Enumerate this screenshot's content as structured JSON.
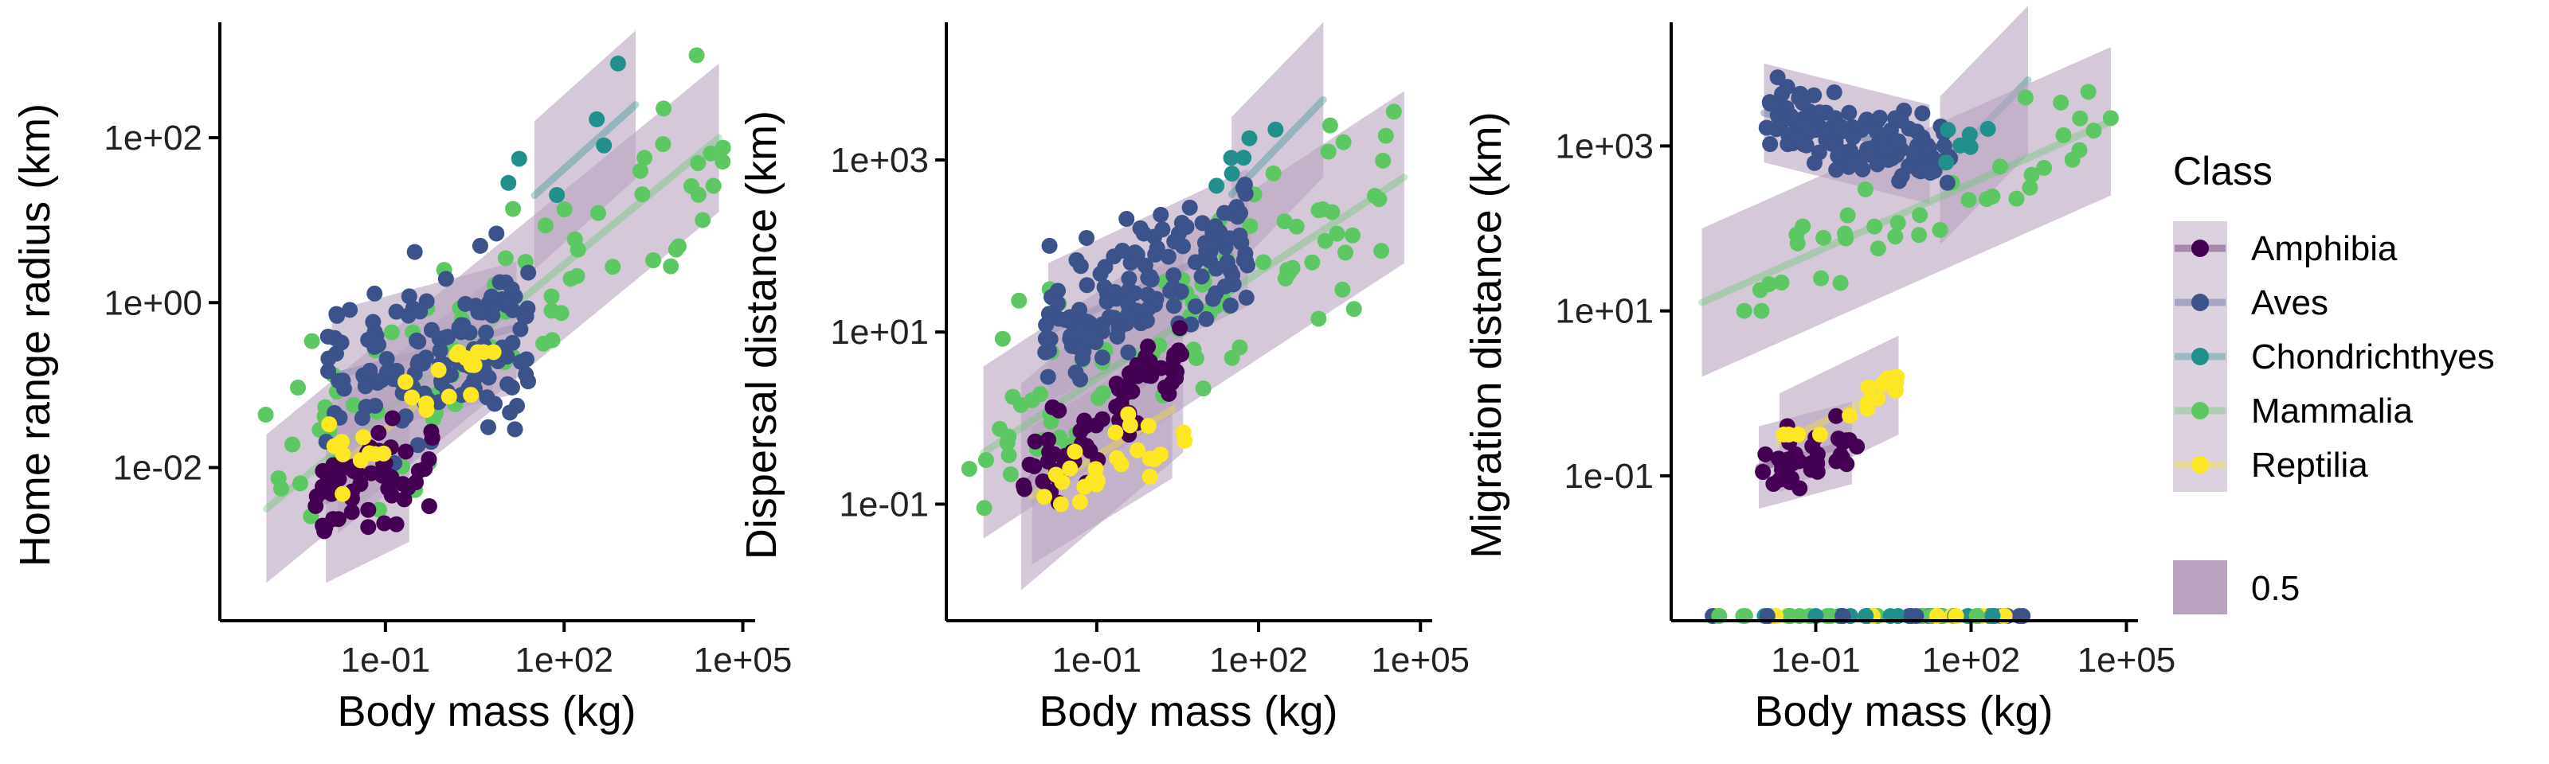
{
  "chart_data": [
    {
      "type": "scatter",
      "xlabel": "Body mass (kg)",
      "ylabel": "Home range radius (km)",
      "x_scale": "log10",
      "y_scale": "log10",
      "x_ticks": [
        "1e-01",
        "1e+02",
        "1e+05"
      ],
      "y_ticks": [
        "1e-02",
        "1e+00",
        "1e+02"
      ],
      "xlim_log10": [
        -3.7,
        5.1
      ],
      "ylim_log10": [
        -3.8,
        3.4
      ],
      "fits": [
        {
          "class": "Amphibia",
          "x_log10": [
            -2.0,
            -0.6
          ],
          "y_log10": [
            -2.4,
            -1.9
          ],
          "band": 1.0
        },
        {
          "class": "Aves",
          "x_log10": [
            -1.9,
            1.2
          ],
          "y_log10": [
            -0.9,
            -0.3
          ],
          "band": 0.8
        },
        {
          "class": "Chondrichthyes",
          "x_log10": [
            1.5,
            3.2
          ],
          "y_log10": [
            1.3,
            2.4
          ],
          "band": 0.9
        },
        {
          "class": "Mammalia",
          "x_log10": [
            -3.0,
            4.6
          ],
          "y_log10": [
            -2.5,
            2.0
          ],
          "band": 0.9
        },
        {
          "class": "Reptilia",
          "x_log10": [
            -1.8,
            0.8
          ],
          "y_log10": [
            -2.0,
            -0.5
          ],
          "band": 0.8
        }
      ],
      "points": {
        "Amphibia": {
          "n": 55,
          "x_log10": [
            -2.2,
            -0.2
          ],
          "y_log10": [
            -3.3,
            -0.6
          ]
        },
        "Aves": {
          "n": 140,
          "x_log10": [
            -2.0,
            1.4
          ],
          "y_log10": [
            -3.5,
            1.9
          ]
        },
        "Chondrichthyes": {
          "n": 6,
          "x_log10": [
            1.0,
            3.0
          ],
          "y_log10": [
            -0.3,
            2.9
          ]
        },
        "Mammalia": {
          "n": 80,
          "x_log10": [
            -3.2,
            4.7
          ],
          "y_log10": [
            -2.6,
            3.0
          ]
        },
        "Reptilia": {
          "n": 25,
          "x_log10": [
            -2.0,
            0.9
          ],
          "y_log10": [
            -2.6,
            -0.6
          ]
        }
      }
    },
    {
      "type": "scatter",
      "xlabel": "Body mass (kg)",
      "ylabel": "Dispersal distance (km)",
      "x_scale": "log10",
      "y_scale": "log10",
      "x_ticks": [
        "1e-01",
        "1e+02",
        "1e+05"
      ],
      "y_ticks": [
        "1e-01",
        "1e+01",
        "1e+03"
      ],
      "xlim_log10": [
        -3.7,
        5.1
      ],
      "ylim_log10": [
        -2.3,
        4.6
      ],
      "fits": [
        {
          "class": "Amphibia",
          "x_log10": [
            -2.4,
            0.6
          ],
          "y_log10": [
            -0.8,
            0.8
          ],
          "band": 1.2
        },
        {
          "class": "Aves",
          "x_log10": [
            -1.9,
            1.8
          ],
          "y_log10": [
            1.0,
            2.1
          ],
          "band": 0.8
        },
        {
          "class": "Chondrichthyes",
          "x_log10": [
            1.5,
            3.2
          ],
          "y_log10": [
            2.6,
            3.7
          ],
          "band": 0.9
        },
        {
          "class": "Mammalia",
          "x_log10": [
            -3.1,
            4.7
          ],
          "y_log10": [
            -0.4,
            2.8
          ],
          "band": 1.0
        },
        {
          "class": "Reptilia",
          "x_log10": [
            -2.2,
            0.4
          ],
          "y_log10": [
            -0.9,
            0.1
          ],
          "band": 0.8
        }
      ],
      "points": {
        "Amphibia": {
          "n": 70,
          "x_log10": [
            -2.4,
            0.6
          ],
          "y_log10": [
            -1.1,
            1.3
          ]
        },
        "Aves": {
          "n": 150,
          "x_log10": [
            -2.0,
            1.8
          ],
          "y_log10": [
            -0.6,
            3.3
          ]
        },
        "Chondrichthyes": {
          "n": 6,
          "x_log10": [
            1.2,
            2.7
          ],
          "y_log10": [
            2.7,
            3.9
          ]
        },
        "Mammalia": {
          "n": 90,
          "x_log10": [
            -3.4,
            4.6
          ],
          "y_log10": [
            -1.6,
            3.6
          ]
        },
        "Reptilia": {
          "n": 25,
          "x_log10": [
            -2.2,
            0.9
          ],
          "y_log10": [
            -1.0,
            0.9
          ]
        }
      }
    },
    {
      "type": "scatter",
      "xlabel": "Body mass (kg)",
      "ylabel": "Migration distance (km)",
      "x_scale": "log10",
      "y_scale": "log10",
      "x_ticks": [
        "1e-01",
        "1e+02",
        "1e+05"
      ],
      "y_ticks": [
        "1e-01",
        "1e+01",
        "1e+03"
      ],
      "xlim_log10": [
        -3.7,
        5.1
      ],
      "ylim_log10": [
        -2.7,
        4.5
      ],
      "fits": [
        {
          "class": "Amphibia",
          "x_log10": [
            -2.1,
            -0.3
          ],
          "y_log10": [
            -0.9,
            -0.6
          ],
          "band": 0.5
        },
        {
          "class": "Aves",
          "x_log10": [
            -2.0,
            1.2
          ],
          "y_log10": [
            3.4,
            2.9
          ],
          "band": 0.6
        },
        {
          "class": "Chondrichthyes",
          "x_log10": [
            1.4,
            3.1
          ],
          "y_log10": [
            2.7,
            3.8
          ],
          "band": 0.9
        },
        {
          "class": "Mammalia",
          "x_log10": [
            -3.2,
            4.7
          ],
          "y_log10": [
            1.1,
            3.3
          ],
          "band": 0.9
        },
        {
          "class": "Reptilia",
          "x_log10": [
            -1.7,
            0.6
          ],
          "y_log10": [
            -0.6,
            0.1
          ],
          "band": 0.6
        }
      ],
      "points": {
        "Amphibia": {
          "n": 35,
          "x_log10": [
            -2.1,
            -0.2
          ],
          "y_log10": [
            -1.7,
            0.0
          ]
        },
        "Aves": {
          "n": 130,
          "x_log10": [
            -2.0,
            1.6
          ],
          "y_log10": [
            2.3,
            4.3
          ]
        },
        "Chondrichthyes": {
          "n": 6,
          "x_log10": [
            1.3,
            3.2
          ],
          "y_log10": [
            2.8,
            4.1
          ]
        },
        "Mammalia": {
          "n": 40,
          "x_log10": [
            -2.5,
            4.7
          ],
          "y_log10": [
            1.0,
            3.8
          ]
        },
        "Reptilia": {
          "n": 15,
          "x_log10": [
            -1.8,
            0.6
          ],
          "y_log10": [
            -0.5,
            0.6
          ]
        }
      },
      "floor_points": {
        "n": 70,
        "x_log10": [
          -3.0,
          3.0
        ],
        "y_log10": -2.7
      }
    }
  ],
  "legend": {
    "title": "Class",
    "items": [
      {
        "label": "Amphibia",
        "color": "#440154"
      },
      {
        "label": "Aves",
        "color": "#3b528b"
      },
      {
        "label": "Chondrichthyes",
        "color": "#21908c"
      },
      {
        "label": "Mammalia",
        "color": "#5dc863"
      },
      {
        "label": "Reptilia",
        "color": "#fde725"
      }
    ],
    "band_label": "0.5",
    "band_color": "#b9a3c0"
  }
}
